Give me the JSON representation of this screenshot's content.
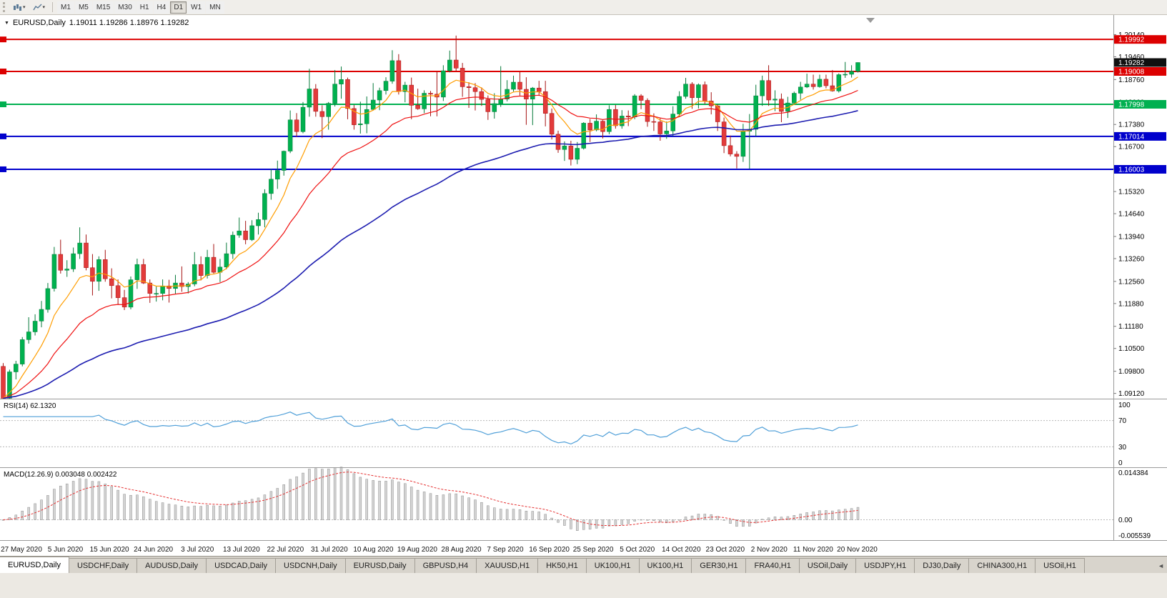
{
  "toolbar": {
    "timeframes": [
      {
        "label": "M1"
      },
      {
        "label": "M5"
      },
      {
        "label": "M15"
      },
      {
        "label": "M30"
      },
      {
        "label": "H1"
      },
      {
        "label": "H4"
      },
      {
        "label": "D1",
        "active": true
      },
      {
        "label": "W1"
      },
      {
        "label": "MN"
      }
    ]
  },
  "chart": {
    "title_symbol": "EURUSD,Daily",
    "title_ohlc": "1.19011 1.19286 1.18976 1.19282",
    "current_price": "1.19282",
    "current_price_bg": "#101010",
    "ylim": [
      1.0898,
      1.2072
    ],
    "levels": [
      {
        "label": "1.19992",
        "color": "#dc0000"
      },
      {
        "label": "1.19008",
        "color": "#dc0000"
      },
      {
        "label": "1.17998",
        "color": "#00b050"
      },
      {
        "label": "1.17014",
        "color": "#0000cc"
      },
      {
        "label": "1.16003",
        "color": "#0000cc"
      }
    ],
    "price_axis_labels": [
      "1.20140",
      "1.19460",
      "1.18760",
      "1.18060",
      "1.17380",
      "1.16700",
      "1.16020",
      "1.15320",
      "1.14640",
      "1.13940",
      "1.13260",
      "1.12560",
      "1.11880",
      "1.11180",
      "1.10500",
      "1.09800",
      "1.09120"
    ]
  },
  "chart_data": {
    "type": "candlestick",
    "symbol": "EURUSD",
    "period": "Daily",
    "up_color": "#00b14f",
    "up_border": "#067a3a",
    "down_color": "#e23b3b",
    "down_border": "#a51212",
    "overlays": [
      {
        "name": "ma-fast-orange",
        "type": "ema",
        "period": 8,
        "color": "#ff9d00",
        "width": 1.2
      },
      {
        "name": "ma-mid-red",
        "type": "ema",
        "period": 21,
        "color": "#ef1010",
        "width": 1.2
      },
      {
        "name": "ma-slow-blue",
        "type": "ema",
        "period": 60,
        "color": "#1c1cb0",
        "width": 1.6
      }
    ],
    "candles": [
      [
        1.0995,
        1.1005,
        1.0894,
        1.0897
      ],
      [
        1.0897,
        1.0985,
        1.0895,
        1.0978
      ],
      [
        1.0978,
        1.1012,
        1.0955,
        1.1002
      ],
      [
        1.1002,
        1.1085,
        1.0995,
        1.1077
      ],
      [
        1.1077,
        1.1146,
        1.1065,
        1.1101
      ],
      [
        1.1101,
        1.1155,
        1.109,
        1.1134
      ],
      [
        1.1134,
        1.1196,
        1.1115,
        1.117
      ],
      [
        1.117,
        1.1251,
        1.116,
        1.1234
      ],
      [
        1.1234,
        1.1362,
        1.1225,
        1.1339
      ],
      [
        1.1339,
        1.1384,
        1.128,
        1.129
      ],
      [
        1.129,
        1.1321,
        1.127,
        1.1294
      ],
      [
        1.1294,
        1.136,
        1.1285,
        1.1341
      ],
      [
        1.1341,
        1.1422,
        1.1325,
        1.1374
      ],
      [
        1.1374,
        1.14,
        1.129,
        1.1298
      ],
      [
        1.1298,
        1.134,
        1.1213,
        1.1256
      ],
      [
        1.1256,
        1.1333,
        1.1227,
        1.1323
      ],
      [
        1.1323,
        1.1353,
        1.1255,
        1.1264
      ],
      [
        1.1264,
        1.1296,
        1.1204,
        1.1243
      ],
      [
        1.1243,
        1.1262,
        1.1185,
        1.1206
      ],
      [
        1.1206,
        1.123,
        1.1168,
        1.1177
      ],
      [
        1.1177,
        1.1271,
        1.117,
        1.1261
      ],
      [
        1.1261,
        1.1326,
        1.1233,
        1.1308
      ],
      [
        1.1308,
        1.1325,
        1.1248,
        1.1251
      ],
      [
        1.1251,
        1.1262,
        1.119,
        1.1219
      ],
      [
        1.1219,
        1.124,
        1.1194,
        1.1219
      ],
      [
        1.1219,
        1.1262,
        1.1198,
        1.1242
      ],
      [
        1.1242,
        1.1261,
        1.1191,
        1.1234
      ],
      [
        1.1234,
        1.1276,
        1.1218,
        1.1251
      ],
      [
        1.1251,
        1.1302,
        1.1224,
        1.124
      ],
      [
        1.124,
        1.1254,
        1.1219,
        1.1248
      ],
      [
        1.1248,
        1.1346,
        1.1241,
        1.1308
      ],
      [
        1.1308,
        1.1333,
        1.1259,
        1.1274
      ],
      [
        1.1274,
        1.1353,
        1.1265,
        1.133
      ],
      [
        1.133,
        1.1371,
        1.128,
        1.1284
      ],
      [
        1.1284,
        1.1325,
        1.1254,
        1.13
      ],
      [
        1.13,
        1.1375,
        1.1293,
        1.1341
      ],
      [
        1.1341,
        1.1409,
        1.1325,
        1.1398
      ],
      [
        1.1398,
        1.1452,
        1.139,
        1.1411
      ],
      [
        1.1411,
        1.1442,
        1.137,
        1.1384
      ],
      [
        1.1384,
        1.1444,
        1.138,
        1.1427
      ],
      [
        1.1427,
        1.1467,
        1.14,
        1.1446
      ],
      [
        1.1446,
        1.1539,
        1.1422,
        1.1526
      ],
      [
        1.1526,
        1.1601,
        1.1507,
        1.157
      ],
      [
        1.157,
        1.1627,
        1.154,
        1.1597
      ],
      [
        1.1597,
        1.1658,
        1.1581,
        1.1656
      ],
      [
        1.1656,
        1.1781,
        1.165,
        1.1752
      ],
      [
        1.1752,
        1.1773,
        1.17,
        1.1716
      ],
      [
        1.1716,
        1.1807,
        1.1711,
        1.1791
      ],
      [
        1.1791,
        1.1909,
        1.1762,
        1.1847
      ],
      [
        1.1847,
        1.1862,
        1.1762,
        1.1778
      ],
      [
        1.1778,
        1.1797,
        1.1696,
        1.1762
      ],
      [
        1.1762,
        1.1807,
        1.1722,
        1.1803
      ],
      [
        1.1803,
        1.1905,
        1.1793,
        1.1862
      ],
      [
        1.1862,
        1.1916,
        1.1817,
        1.1876
      ],
      [
        1.1876,
        1.1882,
        1.1754,
        1.1787
      ],
      [
        1.1787,
        1.1798,
        1.1722,
        1.1737
      ],
      [
        1.1737,
        1.1808,
        1.171,
        1.174
      ],
      [
        1.174,
        1.1824,
        1.1711,
        1.1784
      ],
      [
        1.1784,
        1.1865,
        1.1782,
        1.1813
      ],
      [
        1.1813,
        1.1851,
        1.1782,
        1.1842
      ],
      [
        1.1842,
        1.1883,
        1.183,
        1.1871
      ],
      [
        1.1871,
        1.1966,
        1.1863,
        1.1934
      ],
      [
        1.1934,
        1.1954,
        1.183,
        1.1839
      ],
      [
        1.1839,
        1.1869,
        1.1806,
        1.1859
      ],
      [
        1.1859,
        1.1882,
        1.1754,
        1.1797
      ],
      [
        1.1797,
        1.1848,
        1.1783,
        1.1786
      ],
      [
        1.1786,
        1.1843,
        1.1773,
        1.1834
      ],
      [
        1.1834,
        1.1841,
        1.1763,
        1.1831
      ],
      [
        1.1831,
        1.1901,
        1.1763,
        1.1822
      ],
      [
        1.1822,
        1.192,
        1.181,
        1.1903
      ],
      [
        1.1903,
        1.1965,
        1.1898,
        1.1936
      ],
      [
        1.1936,
        1.2011,
        1.1901,
        1.1911
      ],
      [
        1.1911,
        1.1927,
        1.1823,
        1.1854
      ],
      [
        1.1854,
        1.1868,
        1.1789,
        1.1851
      ],
      [
        1.1851,
        1.1865,
        1.1781,
        1.1839
      ],
      [
        1.1839,
        1.1852,
        1.1795,
        1.1815
      ],
      [
        1.1815,
        1.1827,
        1.1752,
        1.1777
      ],
      [
        1.1777,
        1.1834,
        1.1756,
        1.1802
      ],
      [
        1.1802,
        1.1917,
        1.1792,
        1.1816
      ],
      [
        1.1816,
        1.1874,
        1.1809,
        1.1846
      ],
      [
        1.1846,
        1.1888,
        1.1839,
        1.1868
      ],
      [
        1.1868,
        1.19,
        1.1827,
        1.1846
      ],
      [
        1.1846,
        1.1883,
        1.1737,
        1.1816
      ],
      [
        1.1816,
        1.1853,
        1.1736,
        1.185
      ],
      [
        1.185,
        1.1872,
        1.1826,
        1.1839
      ],
      [
        1.1839,
        1.1872,
        1.1732,
        1.1772
      ],
      [
        1.1772,
        1.1787,
        1.1692,
        1.1708
      ],
      [
        1.1708,
        1.1719,
        1.1651,
        1.1661
      ],
      [
        1.1661,
        1.1686,
        1.1626,
        1.1672
      ],
      [
        1.1672,
        1.1688,
        1.1612,
        1.1631
      ],
      [
        1.1631,
        1.1684,
        1.1616,
        1.1665
      ],
      [
        1.1665,
        1.1745,
        1.1661,
        1.1742
      ],
      [
        1.1742,
        1.1755,
        1.1684,
        1.1721
      ],
      [
        1.1721,
        1.1769,
        1.1717,
        1.1748
      ],
      [
        1.1748,
        1.1751,
        1.1695,
        1.1716
      ],
      [
        1.1716,
        1.1797,
        1.1708,
        1.1784
      ],
      [
        1.1784,
        1.1798,
        1.1725,
        1.1734
      ],
      [
        1.1734,
        1.1782,
        1.1725,
        1.1764
      ],
      [
        1.1764,
        1.1781,
        1.1733,
        1.1761
      ],
      [
        1.1761,
        1.1831,
        1.1754,
        1.1826
      ],
      [
        1.1826,
        1.1831,
        1.1785,
        1.1812
      ],
      [
        1.1812,
        1.1818,
        1.1731,
        1.1747
      ],
      [
        1.1747,
        1.1772,
        1.1718,
        1.1746
      ],
      [
        1.1746,
        1.1758,
        1.1688,
        1.1709
      ],
      [
        1.1709,
        1.1747,
        1.1694,
        1.1718
      ],
      [
        1.1718,
        1.1794,
        1.1703,
        1.177
      ],
      [
        1.177,
        1.184,
        1.1762,
        1.1824
      ],
      [
        1.1824,
        1.1881,
        1.1817,
        1.1862
      ],
      [
        1.1862,
        1.1868,
        1.1786,
        1.182
      ],
      [
        1.182,
        1.1864,
        1.1787,
        1.186
      ],
      [
        1.186,
        1.187,
        1.18,
        1.181
      ],
      [
        1.181,
        1.1837,
        1.1769,
        1.1795
      ],
      [
        1.1795,
        1.18,
        1.1718,
        1.1746
      ],
      [
        1.1746,
        1.1759,
        1.165,
        1.1673
      ],
      [
        1.1673,
        1.1704,
        1.164,
        1.1647
      ],
      [
        1.1647,
        1.1656,
        1.1603,
        1.164
      ],
      [
        1.164,
        1.174,
        1.1623,
        1.1717
      ],
      [
        1.1717,
        1.177,
        1.1602,
        1.1723
      ],
      [
        1.1723,
        1.186,
        1.1702,
        1.1826
      ],
      [
        1.1826,
        1.1888,
        1.1795,
        1.1873
      ],
      [
        1.1873,
        1.192,
        1.1795,
        1.1813
      ],
      [
        1.1813,
        1.1843,
        1.1779,
        1.1816
      ],
      [
        1.1816,
        1.1833,
        1.1745,
        1.1778
      ],
      [
        1.1778,
        1.1823,
        1.1758,
        1.1804
      ],
      [
        1.1804,
        1.1839,
        1.1799,
        1.1834
      ],
      [
        1.1834,
        1.1869,
        1.1814,
        1.1853
      ],
      [
        1.1853,
        1.1894,
        1.185,
        1.1862
      ],
      [
        1.1862,
        1.1891,
        1.1845,
        1.1854
      ],
      [
        1.1854,
        1.1891,
        1.1851,
        1.1877
      ],
      [
        1.1877,
        1.1891,
        1.1849,
        1.1857
      ],
      [
        1.1857,
        1.1905,
        1.1839,
        1.1841
      ],
      [
        1.1841,
        1.1895,
        1.1836,
        1.1891
      ],
      [
        1.1891,
        1.193,
        1.1881,
        1.1892
      ],
      [
        1.1892,
        1.192,
        1.1882,
        1.1901
      ],
      [
        1.19011,
        1.19286,
        1.18976,
        1.19282
      ]
    ]
  },
  "rsi": {
    "label": "RSI(14) 62.1320",
    "value": 62.132,
    "period": 14,
    "color": "#4f9fd8",
    "levels": [
      70,
      30
    ],
    "ylim": [
      0,
      100
    ],
    "axis_labels": [
      "100",
      "70",
      "30",
      "0"
    ]
  },
  "macd": {
    "label": "MACD(12.26.9) 0.003048 0.002422",
    "fast": 12,
    "slow": 26,
    "signal": 9,
    "macd_value": 0.003048,
    "signal_value": 0.002422,
    "signal_color": "#e53030",
    "histogram_fill": "#d4d4d4",
    "histogram_stroke": "#8f8f8f",
    "ylim": [
      -0.005539,
      0.014384
    ],
    "axis_labels": [
      "0.014384",
      "0.00",
      "-0.005539"
    ]
  },
  "date_axis": {
    "labels": [
      "27 May 2020",
      "5 Jun 2020",
      "15 Jun 2020",
      "24 Jun 2020",
      "3 Jul 2020",
      "13 Jul 2020",
      "22 Jul 2020",
      "31 Jul 2020",
      "10 Aug 2020",
      "19 Aug 2020",
      "28 Aug 2020",
      "7 Sep 2020",
      "16 Sep 2020",
      "25 Sep 2020",
      "5 Oct 2020",
      "14 Oct 2020",
      "23 Oct 2020",
      "2 Nov 2020",
      "11 Nov 2020",
      "20 Nov 2020"
    ]
  },
  "tabs": {
    "scroll_icon": "◄",
    "items": [
      {
        "label": "EURUSD,Daily",
        "active": true
      },
      {
        "label": "USDCHF,Daily"
      },
      {
        "label": "AUDUSD,Daily"
      },
      {
        "label": "USDCAD,Daily"
      },
      {
        "label": "USDCNH,Daily"
      },
      {
        "label": "EURUSD,Daily"
      },
      {
        "label": "GBPUSD,H4"
      },
      {
        "label": "XAUUSD,H1"
      },
      {
        "label": "HK50,H1"
      },
      {
        "label": "UK100,H1"
      },
      {
        "label": "UK100,H1"
      },
      {
        "label": "GER30,H1"
      },
      {
        "label": "FRA40,H1"
      },
      {
        "label": "USOil,Daily"
      },
      {
        "label": "USDJPY,H1"
      },
      {
        "label": "DJ30,Daily"
      },
      {
        "label": "CHINA300,H1"
      },
      {
        "label": "USOil,H1"
      }
    ]
  }
}
